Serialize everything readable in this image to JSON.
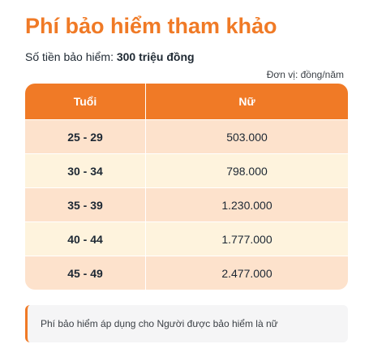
{
  "header": {
    "title": "Phí bảo hiểm tham khảo",
    "sum_label": "Số tiền bảo hiểm:",
    "sum_value": "300 triệu đồng",
    "unit": "Đơn vị: đồng/năm"
  },
  "table": {
    "columns": [
      "Tuổi",
      "Nữ"
    ],
    "rows": [
      {
        "age": "25 - 29",
        "female": "503.000"
      },
      {
        "age": "30 - 34",
        "female": "798.000"
      },
      {
        "age": "35 - 39",
        "female": "1.230.000"
      },
      {
        "age": "40 - 44",
        "female": "1.777.000"
      },
      {
        "age": "45 - 49",
        "female": "2.477.000"
      }
    ]
  },
  "note": {
    "text": "Phí bảo hiểm áp dụng cho Người được bảo hiểm là nữ"
  },
  "colors": {
    "accent": "#f07a26",
    "row_odd": "#fde2cc",
    "row_even": "#fef3dd"
  }
}
